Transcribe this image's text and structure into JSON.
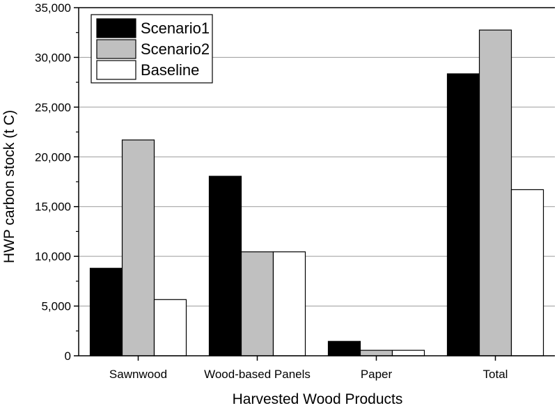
{
  "chart_data": {
    "type": "bar",
    "xlabel": "Harvested Wood Products",
    "ylabel": "HWP carbon stock (t C)",
    "categories": [
      "Sawnwood",
      "Wood-based Panels",
      "Paper",
      "Total"
    ],
    "series": [
      {
        "name": "Scenario1",
        "values": [
          8800,
          18050,
          1450,
          28350
        ],
        "color": "#000000"
      },
      {
        "name": "Scenario2",
        "values": [
          21700,
          10450,
          550,
          32750
        ],
        "color": "#c0c0c0"
      },
      {
        "name": "Baseline",
        "values": [
          5650,
          10450,
          550,
          16700
        ],
        "color": "#ffffff"
      }
    ],
    "ylim": [
      0,
      35000
    ],
    "yticks": [
      "0",
      "5,000",
      "10,000",
      "15,000",
      "20,000",
      "25,000",
      "30,000",
      "35,000"
    ],
    "ytick_values": [
      0,
      5000,
      10000,
      15000,
      20000,
      25000,
      30000,
      35000
    ],
    "grid": "horizontal",
    "legend_position": "top-left"
  }
}
